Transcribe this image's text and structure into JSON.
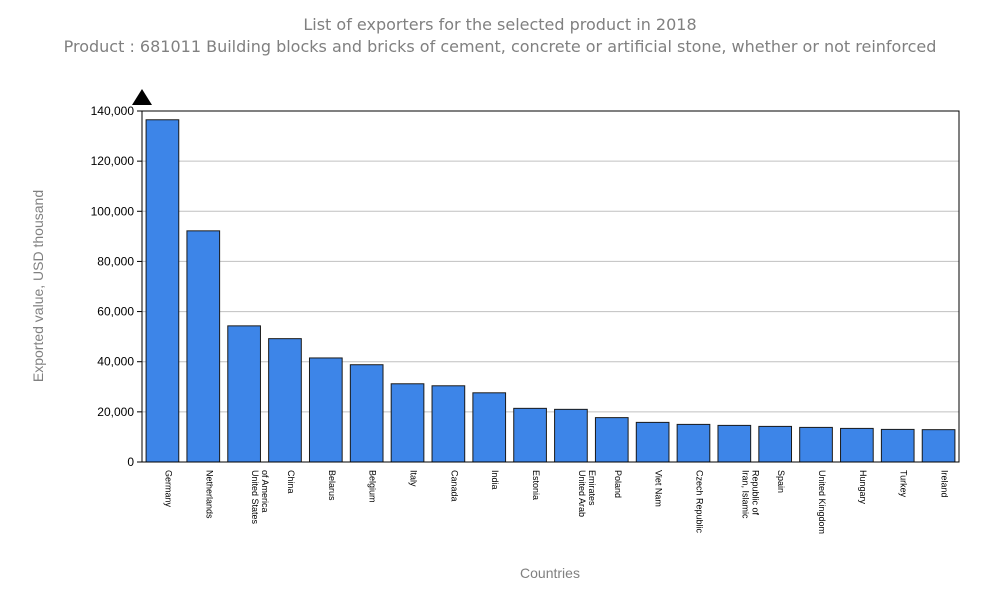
{
  "chart_data": {
    "type": "bar",
    "title": "List of exporters for the selected product in 2018",
    "subtitle": "Product : 681011 Building blocks and bricks of cement, concrete or artificial stone, whether or not reinforced",
    "xlabel": "Countries",
    "ylabel": "Exported value, USD thousand",
    "ylim": [
      0,
      140000
    ],
    "yticks": [
      0,
      20000,
      40000,
      60000,
      80000,
      100000,
      120000,
      140000
    ],
    "ytick_labels": [
      "0",
      "20,000",
      "40,000",
      "60,000",
      "80,000",
      "100,000",
      "120,000",
      "140,000"
    ],
    "grid": true,
    "bar_color": "#3d85e8",
    "categories": [
      [
        "Germany"
      ],
      [
        "Netherlands"
      ],
      [
        "United States",
        "of America"
      ],
      [
        "China"
      ],
      [
        "Belarus"
      ],
      [
        "Belgium"
      ],
      [
        "Italy"
      ],
      [
        "Canada"
      ],
      [
        "India"
      ],
      [
        "Estonia"
      ],
      [
        "United Arab",
        "Emirates"
      ],
      [
        "Poland"
      ],
      [
        "Viet Nam"
      ],
      [
        "Czech Republic"
      ],
      [
        "Iran, Islamic",
        "Republic of"
      ],
      [
        "Spain"
      ],
      [
        "United Kingdom"
      ],
      [
        "Hungary"
      ],
      [
        "Turkey"
      ],
      [
        "Ireland"
      ]
    ],
    "values": [
      136500,
      92200,
      54300,
      49200,
      41500,
      38800,
      31200,
      30400,
      27600,
      21400,
      21000,
      17700,
      15800,
      15000,
      14600,
      14200,
      13800,
      13400,
      13000,
      12900
    ]
  }
}
